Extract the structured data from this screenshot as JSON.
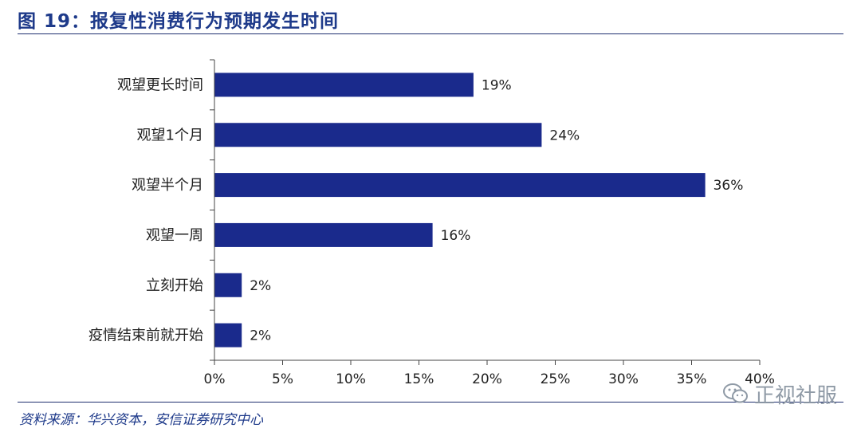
{
  "figure": {
    "title": "图 19：报复性消费行为预期发生时间",
    "source": "资料来源：华兴资本，安信证券研究中心",
    "watermark": "正视社服",
    "watermark_icon": "wechat-icon"
  },
  "colors": {
    "bar": "#1a2a8c",
    "title": "#1e3a8a",
    "rule": "#1f2f6f",
    "axis": "#444444"
  },
  "chart_data": {
    "type": "bar",
    "orientation": "horizontal",
    "title": "",
    "xlabel": "",
    "ylabel": "",
    "categories": [
      "观望更长时间",
      "观望1个月",
      "观望半个月",
      "观望一周",
      "立刻开始",
      "疫情结束前就开始"
    ],
    "values": [
      19,
      24,
      36,
      16,
      2,
      2
    ],
    "data_labels": [
      "19%",
      "24%",
      "36%",
      "16%",
      "2%",
      "2%"
    ],
    "xlim": [
      0,
      40
    ],
    "x_ticks": [
      0,
      5,
      10,
      15,
      20,
      25,
      30,
      35,
      40
    ],
    "x_tick_labels": [
      "0%",
      "5%",
      "10%",
      "15%",
      "20%",
      "25%",
      "30%",
      "35%",
      "40%"
    ],
    "grid": false,
    "legend": "none"
  }
}
